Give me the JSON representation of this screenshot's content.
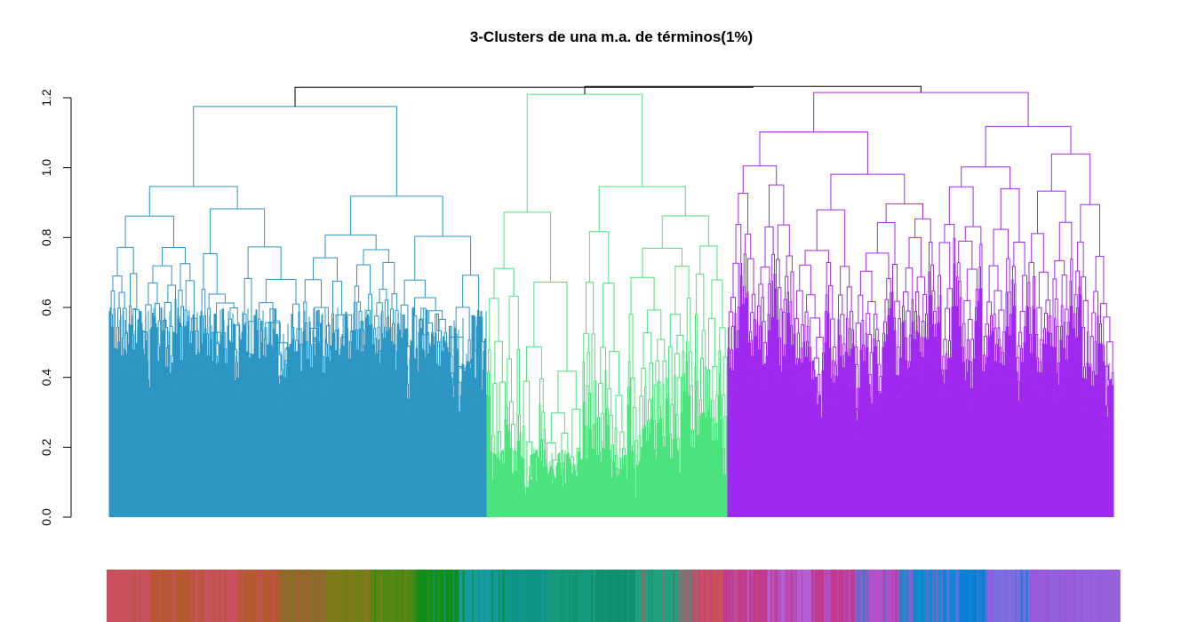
{
  "chart_data": {
    "type": "dendrogram",
    "title": "3-Clusters de una m.a. de términos(1%)",
    "xlabel": "",
    "ylabel": "",
    "ylim": [
      0,
      1.2
    ],
    "yticks": [
      0.0,
      0.2,
      0.4,
      0.6,
      0.8,
      1.0,
      1.2
    ],
    "ytick_labels": [
      "0.0",
      "0.2",
      "0.4",
      "0.6",
      "0.8",
      "1.0",
      "1.2"
    ],
    "root_height": 1.23,
    "clusters": [
      {
        "id": 1,
        "color": "#2b96c3",
        "leaf_fraction": 0.376,
        "merge_height": 1.175,
        "subcluster_heights": [
          1.165,
          1.135,
          1.105
        ],
        "typical_leaf_height": 0.48
      },
      {
        "id": 2,
        "color": "#4be37c",
        "leaf_fraction": 0.24,
        "merge_height": 1.21,
        "subcluster_heights": [
          1.13,
          1.085,
          1.04,
          0.99
        ],
        "typical_leaf_height": 0.1
      },
      {
        "id": 3,
        "color": "#a029ef",
        "leaf_fraction": 0.384,
        "merge_height": 1.215,
        "subcluster_heights": [
          1.2,
          1.155,
          1.115,
          1.1
        ],
        "typical_leaf_height": 0.22
      }
    ],
    "color_bar": {
      "colors": [
        "#c8515d",
        "#b6582f",
        "#c8515d",
        "#b3582f",
        "#8d6a2a",
        "#7b7c18",
        "#4d8a14",
        "#118d1a",
        "#159aa0",
        "#0d9488",
        "#16997a",
        "#0f9070",
        "#20a080",
        "#c8515d",
        "#c03a8e",
        "#b35fd6",
        "#c03a8e",
        "#b34fc8",
        "#138ccc",
        "#0a7fd8",
        "#7a6fe0",
        "#9a58d8",
        "#9460db"
      ]
    }
  }
}
